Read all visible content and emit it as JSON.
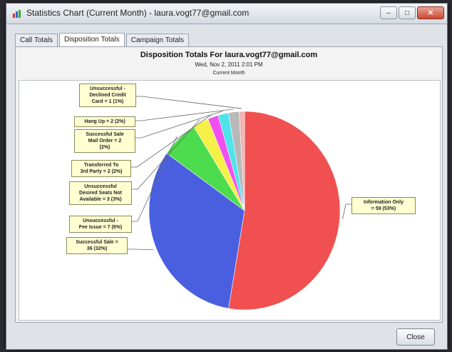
{
  "window": {
    "title": "Statistics Chart (Current Month) - laura.vogt77@gmail.com",
    "close_label": "Close"
  },
  "tabs": [
    {
      "label": "Call Totals",
      "active": false
    },
    {
      "label": "Disposition Totals",
      "active": true
    },
    {
      "label": "Campaign Totals",
      "active": false
    }
  ],
  "chart_data": {
    "type": "pie",
    "title": "Disposition Totals For laura.vogt77@gmail.com",
    "subtitle": "Wed, Nov 2, 2011 2:01 PM",
    "period": "Current Month",
    "slices": [
      {
        "name": "Information Only",
        "value": 59,
        "percent": "53%",
        "color": "#f05050",
        "label": "Information Only\n= 59 (53%)"
      },
      {
        "name": "Successful Sale",
        "value": 36,
        "percent": "32%",
        "color": "#4a5fe0",
        "label": "Successful Sale =\n36 (32%)"
      },
      {
        "name": "Unsuccessful - Fee Issue",
        "value": 7,
        "percent": "6%",
        "color": "#4ddc4d",
        "label": "Unsuccessful -\nFee Issue = 7 (6%)"
      },
      {
        "name": "Unsuccessful Desired Seats Not Available",
        "value": 3,
        "percent": "3%",
        "color": "#f4f047",
        "label": "Unsuccessful\nDesired Seats Not\nAvailable = 3 (3%)"
      },
      {
        "name": "Transferred To 3rd Party",
        "value": 2,
        "percent": "2%",
        "color": "#f050f0",
        "label": "Transferred To\n3rd Party = 2 (2%)"
      },
      {
        "name": "Successful Sale Mail Order",
        "value": 2,
        "percent": "2%",
        "color": "#4fe3ea",
        "label": "Successful Sale\nMail Order = 2\n(2%)"
      },
      {
        "name": "Hang Up",
        "value": 2,
        "percent": "2%",
        "color": "#b8b8b8",
        "label": "Hang Up = 2 (2%)"
      },
      {
        "name": "Unsuccessful - Declined Credit Card",
        "value": 1,
        "percent": "1%",
        "color": "#f2b3b3",
        "label": "Unsuccessful -\nDeclined Credit\nCard = 1 (1%)"
      }
    ]
  }
}
